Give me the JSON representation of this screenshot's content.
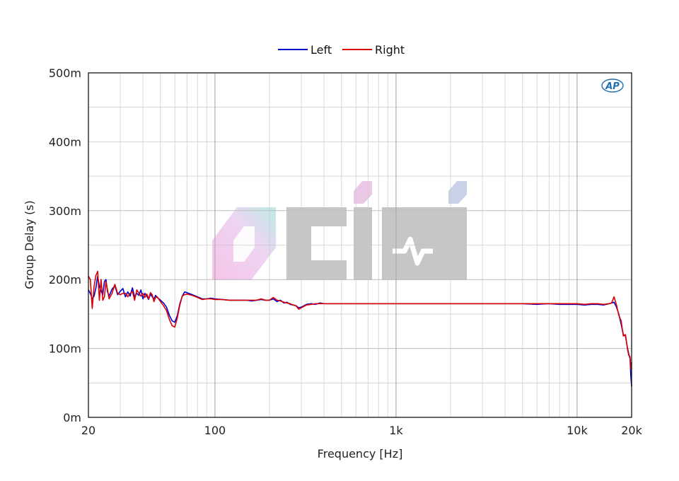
{
  "chart_data": {
    "type": "line",
    "xlabel": "Frequency [Hz]",
    "ylabel": "Group Delay (s)",
    "x_scale": "log",
    "xlim": [
      20,
      20000
    ],
    "ylim": [
      0,
      0.5
    ],
    "x_ticks": [
      {
        "value": 20,
        "label": "20"
      },
      {
        "value": 100,
        "label": "100"
      },
      {
        "value": 1000,
        "label": "1k"
      },
      {
        "value": 10000,
        "label": "10k"
      },
      {
        "value": 20000,
        "label": "20k"
      }
    ],
    "y_ticks": [
      {
        "value": 0,
        "label": "0m"
      },
      {
        "value": 0.1,
        "label": "100m"
      },
      {
        "value": 0.2,
        "label": "200m"
      },
      {
        "value": 0.3,
        "label": "300m"
      },
      {
        "value": 0.4,
        "label": "400m"
      },
      {
        "value": 0.5,
        "label": "500m"
      }
    ],
    "grid": true,
    "legend_position": "top-center",
    "series": [
      {
        "name": "Left",
        "color": "#0000cc",
        "x": [
          20,
          20.5,
          21,
          21.5,
          22,
          22.5,
          23,
          23.5,
          24,
          24.5,
          25,
          25.5,
          26,
          27,
          28,
          29,
          30,
          31,
          32,
          33,
          34,
          35,
          36,
          37,
          38,
          39,
          40,
          41,
          42,
          43,
          44,
          45,
          46,
          47,
          48,
          50,
          52,
          54,
          56,
          58,
          60,
          62,
          64,
          66,
          68,
          70,
          75,
          80,
          85,
          90,
          95,
          100,
          110,
          120,
          130,
          140,
          150,
          160,
          170,
          180,
          190,
          200,
          210,
          220,
          230,
          240,
          250,
          260,
          270,
          280,
          290,
          300,
          320,
          340,
          360,
          380,
          400,
          450,
          500,
          600,
          700,
          800,
          1000,
          2000,
          3000,
          4000,
          5000,
          6000,
          7000,
          8000,
          9000,
          10000,
          11000,
          12000,
          13000,
          14000,
          15000,
          15500,
          16000,
          16500,
          17000,
          17500,
          18000,
          18500,
          19000,
          19300,
          19600,
          19800,
          20000
        ],
        "y": [
          0.185,
          0.18,
          0.172,
          0.176,
          0.188,
          0.205,
          0.19,
          0.183,
          0.178,
          0.197,
          0.2,
          0.182,
          0.176,
          0.186,
          0.191,
          0.178,
          0.183,
          0.187,
          0.175,
          0.182,
          0.176,
          0.188,
          0.175,
          0.18,
          0.177,
          0.185,
          0.172,
          0.18,
          0.176,
          0.171,
          0.179,
          0.175,
          0.172,
          0.177,
          0.174,
          0.17,
          0.166,
          0.16,
          0.148,
          0.14,
          0.138,
          0.148,
          0.165,
          0.176,
          0.182,
          0.181,
          0.178,
          0.175,
          0.172,
          0.172,
          0.173,
          0.172,
          0.171,
          0.17,
          0.17,
          0.17,
          0.17,
          0.169,
          0.17,
          0.171,
          0.17,
          0.17,
          0.172,
          0.168,
          0.17,
          0.166,
          0.167,
          0.164,
          0.163,
          0.162,
          0.159,
          0.16,
          0.164,
          0.165,
          0.164,
          0.166,
          0.165,
          0.165,
          0.165,
          0.165,
          0.165,
          0.165,
          0.165,
          0.165,
          0.165,
          0.165,
          0.165,
          0.164,
          0.165,
          0.164,
          0.164,
          0.164,
          0.163,
          0.164,
          0.164,
          0.163,
          0.165,
          0.166,
          0.167,
          0.16,
          0.15,
          0.135,
          0.12,
          0.118,
          0.1,
          0.092,
          0.085,
          0.06,
          0.045
        ]
      },
      {
        "name": "Right",
        "color": "#dd0000",
        "x": [
          20,
          20.5,
          21,
          21.5,
          22,
          22.5,
          23,
          23.5,
          24,
          24.5,
          25,
          25.5,
          26,
          27,
          28,
          29,
          30,
          31,
          32,
          33,
          34,
          35,
          36,
          37,
          38,
          39,
          40,
          41,
          42,
          43,
          44,
          45,
          46,
          47,
          48,
          50,
          52,
          54,
          56,
          58,
          60,
          62,
          64,
          66,
          68,
          70,
          75,
          80,
          85,
          90,
          95,
          100,
          110,
          120,
          130,
          140,
          150,
          160,
          170,
          180,
          190,
          200,
          210,
          220,
          230,
          240,
          250,
          260,
          270,
          280,
          290,
          300,
          320,
          340,
          360,
          380,
          400,
          450,
          500,
          600,
          700,
          800,
          1000,
          2000,
          3000,
          4000,
          5000,
          6000,
          7000,
          8000,
          9000,
          10000,
          11000,
          12000,
          13000,
          14000,
          15000,
          15500,
          16000,
          16500,
          17000,
          17500,
          18000,
          18500,
          19000,
          19300,
          19600,
          19800,
          20000
        ],
        "y": [
          0.205,
          0.2,
          0.158,
          0.19,
          0.206,
          0.212,
          0.17,
          0.2,
          0.17,
          0.175,
          0.197,
          0.185,
          0.172,
          0.18,
          0.193,
          0.18,
          0.178,
          0.18,
          0.18,
          0.175,
          0.18,
          0.183,
          0.17,
          0.185,
          0.18,
          0.176,
          0.18,
          0.174,
          0.179,
          0.172,
          0.181,
          0.178,
          0.168,
          0.174,
          0.175,
          0.168,
          0.162,
          0.155,
          0.142,
          0.133,
          0.131,
          0.145,
          0.163,
          0.176,
          0.178,
          0.179,
          0.177,
          0.174,
          0.171,
          0.172,
          0.172,
          0.171,
          0.171,
          0.17,
          0.17,
          0.17,
          0.17,
          0.17,
          0.17,
          0.172,
          0.17,
          0.17,
          0.174,
          0.17,
          0.169,
          0.167,
          0.166,
          0.165,
          0.163,
          0.162,
          0.157,
          0.159,
          0.163,
          0.164,
          0.165,
          0.165,
          0.165,
          0.165,
          0.165,
          0.165,
          0.165,
          0.165,
          0.165,
          0.165,
          0.165,
          0.165,
          0.165,
          0.165,
          0.165,
          0.165,
          0.165,
          0.165,
          0.164,
          0.165,
          0.165,
          0.164,
          0.165,
          0.166,
          0.175,
          0.163,
          0.148,
          0.14,
          0.118,
          0.12,
          0.098,
          0.09,
          0.088,
          0.07,
          0.08
        ]
      }
    ]
  },
  "watermark": {
    "brand": "AP",
    "logo_colors": [
      "#f0a8d8",
      "#a8e0e0",
      "#b0b0b0"
    ]
  }
}
